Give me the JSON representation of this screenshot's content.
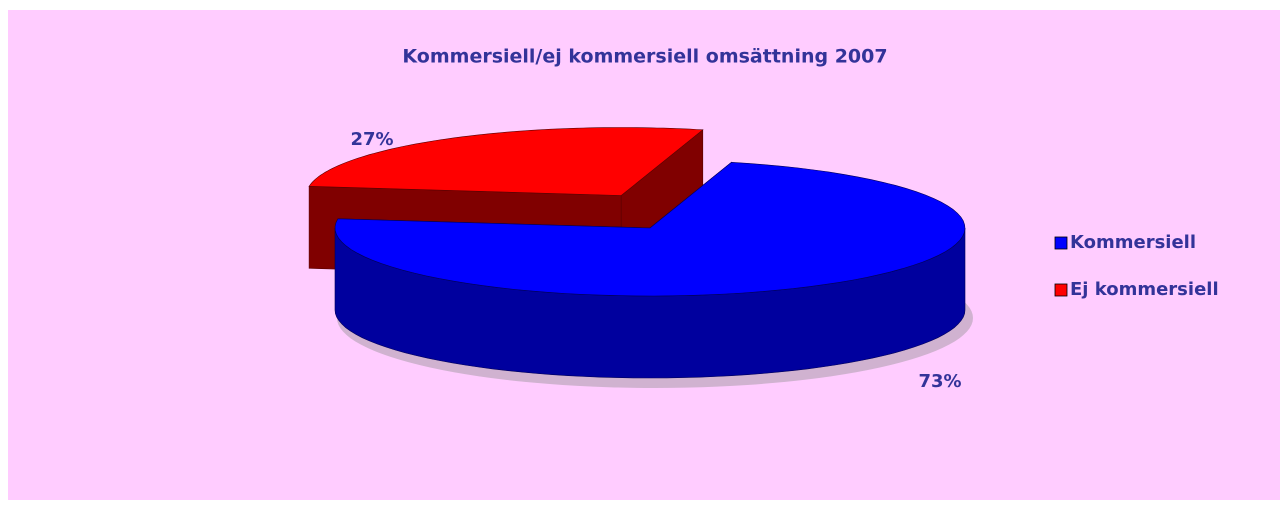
{
  "chart_data": {
    "type": "pie",
    "title": "Kommersiell/ej kommersiell omsättning 2007",
    "categories": [
      "Kommersiell",
      "Ej kommersiell"
    ],
    "values": [
      73,
      27
    ],
    "value_labels": [
      "73%",
      "27%"
    ],
    "colors": [
      "#0000ff",
      "#ff0000"
    ],
    "legend": "right"
  }
}
